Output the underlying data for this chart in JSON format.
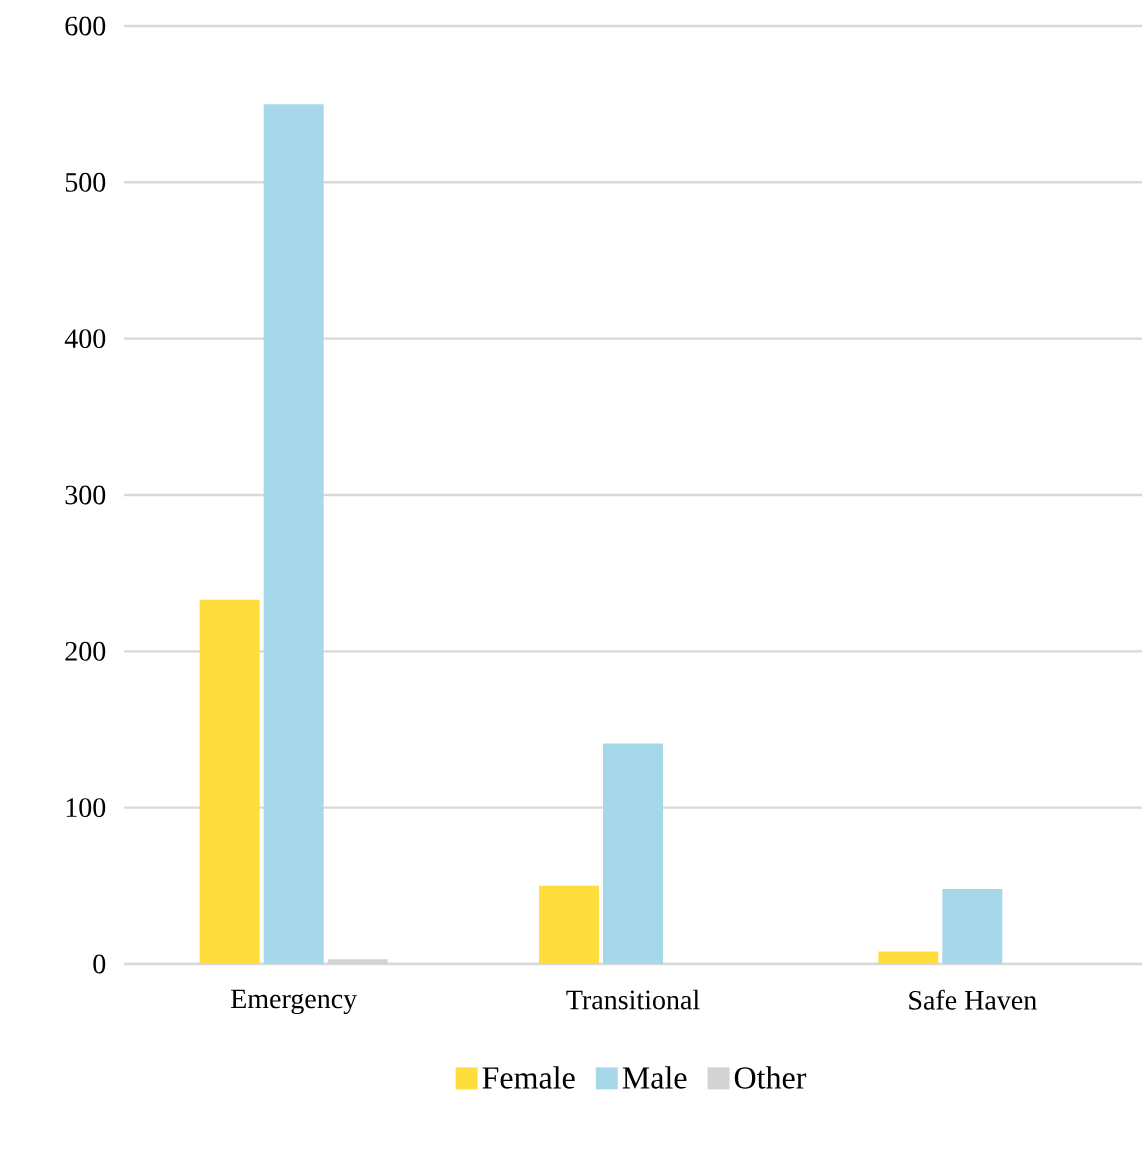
{
  "chart_data": {
    "type": "bar",
    "categories": [
      "Emergency",
      "Transitional",
      "Safe Haven"
    ],
    "series": [
      {
        "name": "Female",
        "color": "#ffdd3c",
        "values": [
          233,
          50,
          8
        ]
      },
      {
        "name": "Male",
        "color": "#a6d8ea",
        "values": [
          550,
          141,
          48
        ]
      },
      {
        "name": "Other",
        "color": "#d3d3d3",
        "values": [
          3,
          null,
          0
        ]
      }
    ],
    "ylim": [
      0,
      600
    ],
    "yticks": [
      0,
      100,
      200,
      300,
      400,
      500,
      600
    ],
    "grid": "y",
    "legend": "bottom"
  }
}
